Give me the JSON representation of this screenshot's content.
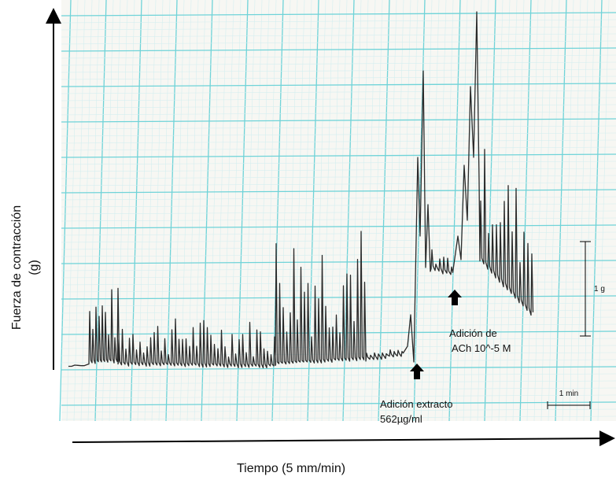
{
  "figure": {
    "y_axis_label": [
      "Fuerza de  contracción",
      "(g)"
    ],
    "x_axis_label": "Tiempo (5 mm/min)",
    "annotations": {
      "extract": [
        "Adición extracto",
        "562µg/ml"
      ],
      "ach": [
        "Adición de",
        "ACh 10^-5 M"
      ]
    },
    "scale_bars": {
      "force": "1 g",
      "time": "1 min"
    }
  }
}
